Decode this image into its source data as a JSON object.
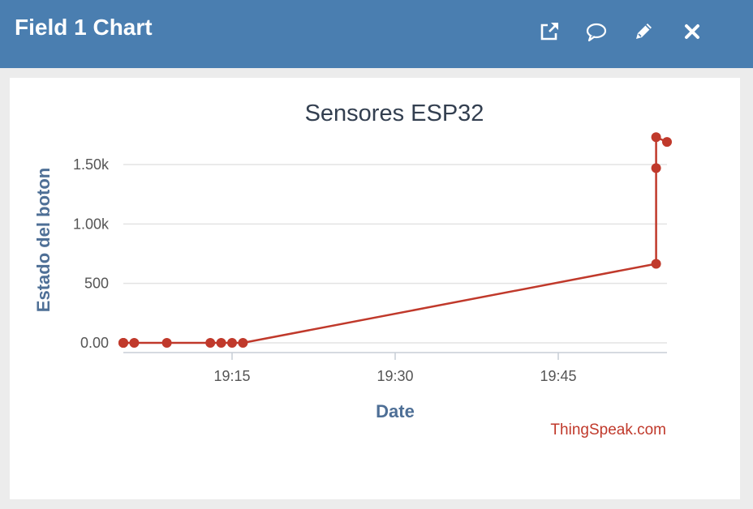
{
  "header": {
    "title": "Field 1 Chart",
    "icons": [
      "external-link-icon",
      "comment-icon",
      "pencil-icon",
      "close-icon"
    ]
  },
  "colors": {
    "header_bg": "#4a7eb0",
    "series": "#c0392b",
    "axis_title": "#4e6f96",
    "credit": "#c0392b"
  },
  "chart_data": {
    "type": "line",
    "title": "Sensores ESP32",
    "xlabel": "Date",
    "ylabel": "Estado del boton",
    "credit": "ThingSpeak.com",
    "x_ticks": [
      "19:15",
      "19:30",
      "19:45"
    ],
    "y_ticks": [
      "0.00",
      "500",
      "1.00k",
      "1.50k"
    ],
    "xlim": [
      "19:05",
      "19:55"
    ],
    "ylim": [
      0,
      1800
    ],
    "grid": true,
    "legend": "none",
    "series": [
      {
        "x": [
          "19:05",
          "19:05",
          "19:05",
          "19:06",
          "19:09",
          "19:13",
          "19:14",
          "19:15",
          "19:16",
          "19:54",
          "19:54",
          "19:54",
          "19:55"
        ],
        "y": [
          0,
          0,
          0,
          0,
          0,
          0,
          0,
          0,
          0,
          665,
          1470,
          1730,
          1690
        ]
      }
    ]
  }
}
